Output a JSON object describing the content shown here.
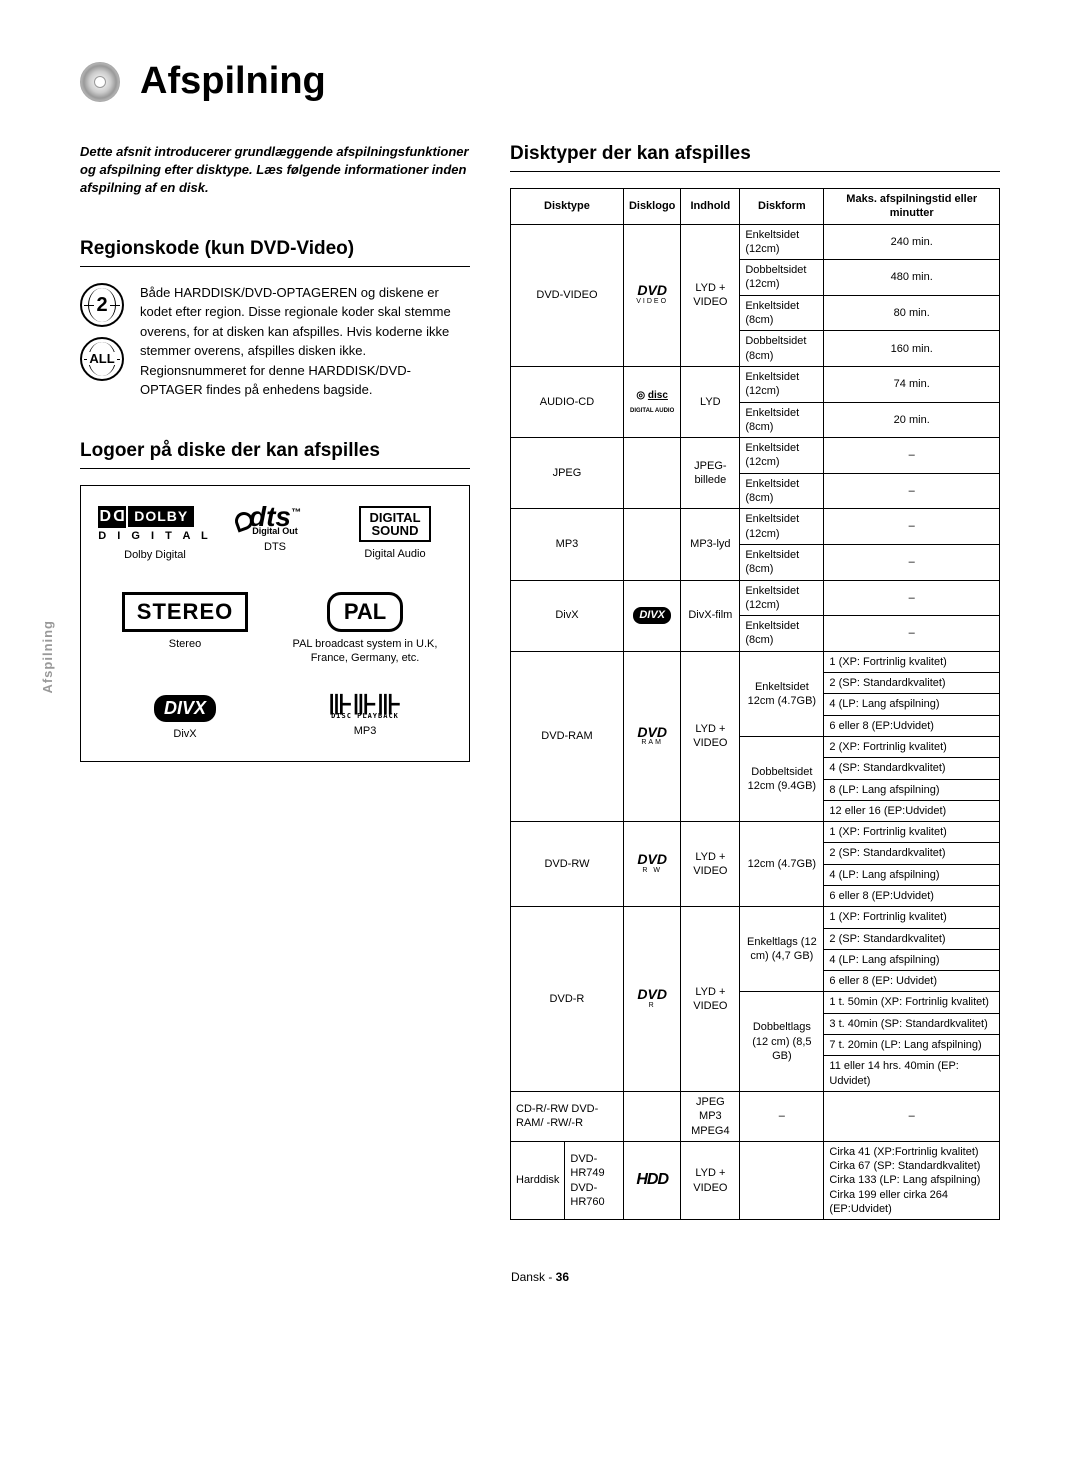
{
  "page": {
    "title": "Afspilning",
    "footer_lang": "Dansk",
    "footer_page": "36",
    "tab_label": "Afspilning"
  },
  "intro": "Dette afsnit introducerer grundlæggende afspilningsfunktioner og afspilning efter disktype. Læs følgende informationer inden afspilning af en disk.",
  "region": {
    "heading": "Regionskode (kun DVD-Video)",
    "globe1": "2",
    "globe2": "ALL",
    "text": "Både HARDDISK/DVD-OPTAGEREN og diskene er kodet efter region. Disse regionale koder skal stemme overens, for at disken kan afspilles. Hvis koderne ikke stemmer overens, afspilles disken ikke. Regionsnummeret for denne HARDDISK/DVD-OPTAGER findes på enhedens bagside."
  },
  "logos": {
    "heading": "Logoer på diske der kan afspilles",
    "dolby_word": "DOLBY",
    "dolby_sub": "D I G I T A L",
    "dolby_caption": "Dolby Digital",
    "dts_text": "dts",
    "dts_sub": "Digital Out",
    "dts_caption": "DTS",
    "dsound_l1": "DIGITAL",
    "dsound_l2": "SOUND",
    "dsound_caption": "Digital Audio",
    "stereo_text": "STEREO",
    "stereo_caption": "Stereo",
    "pal_text": "PAL",
    "pal_caption": "PAL broadcast system in U.K, France, Germany, etc.",
    "divx_text": "DIVX",
    "divx_caption": "DivX",
    "mp3_text": "⊪⊪⊪",
    "mp3_sub": "DISC PLAYBACK",
    "mp3_caption": "MP3"
  },
  "disks": {
    "heading": "Disktyper der kan afspilles",
    "headers": {
      "c1": "Disktype",
      "c2": "Disklogo",
      "c3": "Indhold",
      "c4": "Diskform",
      "c5": "Maks. afspilningstid eller minutter"
    },
    "dvdvideo": {
      "type": "DVD-VIDEO",
      "logo_sub": "VIDEO",
      "content": "LYD + VIDEO",
      "rows": [
        {
          "form": "Enkeltsidet (12cm)",
          "val": "240 min."
        },
        {
          "form": "Dobbeltsidet (12cm)",
          "val": "480 min."
        },
        {
          "form": "Enkeltsidet (8cm)",
          "val": "80 min."
        },
        {
          "form": "Dobbeltsidet (8cm)",
          "val": "160 min."
        }
      ]
    },
    "audiocd": {
      "type": "AUDIO-CD",
      "content": "LYD",
      "rows": [
        {
          "form": "Enkeltsidet (12cm)",
          "val": "74 min."
        },
        {
          "form": "Enkeltsidet (8cm)",
          "val": "20 min."
        }
      ]
    },
    "jpeg": {
      "type": "JPEG",
      "content": "JPEG-billede",
      "rows": [
        {
          "form": "Enkeltsidet (12cm)",
          "val": "–"
        },
        {
          "form": "Enkeltsidet (8cm)",
          "val": "–"
        }
      ]
    },
    "mp3": {
      "type": "MP3",
      "content": "MP3-lyd",
      "rows": [
        {
          "form": "Enkeltsidet (12cm)",
          "val": "–"
        },
        {
          "form": "Enkeltsidet (8cm)",
          "val": "–"
        }
      ]
    },
    "divx": {
      "type": "DivX",
      "content": "DivX-film",
      "rows": [
        {
          "form": "Enkeltsidet (12cm)",
          "val": "–"
        },
        {
          "form": "Enkeltsidet (8cm)",
          "val": "–"
        }
      ]
    },
    "dvdram": {
      "type": "DVD-RAM",
      "logo_sub": "RAM",
      "content": "LYD + VIDEO",
      "form1": "Enkeltsidet 12cm (4.7GB)",
      "form2": "Dobbeltsidet 12cm (9.4GB)",
      "vals1": [
        "1 (XP: Fortrinlig kvalitet)",
        "2 (SP: Standardkvalitet)",
        "4 (LP: Lang afspilning)",
        "6 eller 8 (EP:Udvidet)"
      ],
      "vals2": [
        "2 (XP: Fortrinlig kvalitet)",
        "4 (SP: Standardkvalitet)",
        "8 (LP: Lang afspilning)",
        "12 eller 16 (EP:Udvidet)"
      ]
    },
    "dvdrw": {
      "type": "DVD-RW",
      "logo_sub": "R W",
      "content": "LYD + VIDEO",
      "form": "12cm (4.7GB)",
      "vals": [
        "1 (XP: Fortrinlig kvalitet)",
        "2 (SP: Standardkvalitet)",
        "4 (LP: Lang afspilning)",
        "6 eller 8 (EP:Udvidet)"
      ]
    },
    "dvdr": {
      "type": "DVD-R",
      "logo_sub": "R",
      "content": "LYD + VIDEO",
      "form1": "Enkeltlags (12 cm) (4,7 GB)",
      "form2": "Dobbeltlags (12 cm) (8,5 GB)",
      "vals1": [
        "1  (XP: Fortrinlig kvalitet)",
        "2 (SP: Standardkvalitet)",
        "4 (LP: Lang afspilning)",
        "6 eller 8 (EP: Udvidet)"
      ],
      "vals2": [
        "1 t. 50min (XP: Fortrinlig kvalitet)",
        "3 t. 40min (SP: Standardkvalitet)",
        "7 t. 20min (LP: Lang afspilning)",
        "11 eller 14 hrs. 40min (EP: Udvidet)"
      ]
    },
    "cdr": {
      "type": "CD-R/-RW DVD-RAM/ -RW/-R",
      "content": "JPEG MP3 MPEG4",
      "form": "–",
      "val": "–"
    },
    "hdd": {
      "type_a": "Harddisk",
      "type_b": "DVD-HR749 DVD-HR760",
      "content": "LYD + VIDEO",
      "vals": "Cirka 41 (XP:Fortrinlig kvalitet) Cirka 67 (SP: Standardkvalitet) Cirka 133 (LP: Lang afspilning) Cirka 199 eller cirka 264 (EP:Udvidet)"
    }
  }
}
